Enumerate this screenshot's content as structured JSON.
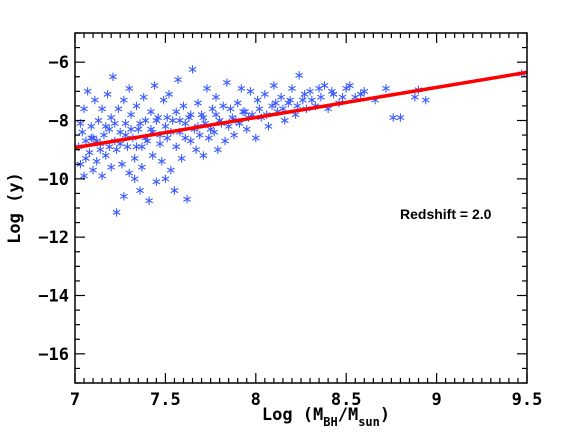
{
  "chart_data": {
    "type": "scatter",
    "title": "",
    "xlabel_parts": [
      "Log (M",
      "BH",
      "/M",
      "sun",
      ")"
    ],
    "ylabel": "Log (y)",
    "xlim": [
      7,
      9.5
    ],
    "ylim": [
      -17,
      -5
    ],
    "x_ticks": [
      7,
      7.5,
      8,
      8.5,
      9,
      9.5
    ],
    "x_tick_labels": [
      "7",
      "7.5",
      "8",
      "8.5",
      "9",
      "9.5"
    ],
    "y_ticks": [
      -16,
      -14,
      -12,
      -10,
      -8,
      -6
    ],
    "y_tick_labels": [
      "−16",
      "−14",
      "−12",
      "−10",
      "−8",
      "−6"
    ],
    "grid": false,
    "annotation": "Redshift = 2.0",
    "marker_color": "#3b5bff",
    "line_color": "#ff0000",
    "fit_line": {
      "x": [
        7.0,
        9.5
      ],
      "y": [
        -8.93,
        -6.35
      ]
    },
    "series": [
      {
        "marker": "asterisk",
        "points": [
          [
            7.02,
            -8.9
          ],
          [
            7.03,
            -9.5
          ],
          [
            7.04,
            -8.4
          ],
          [
            7.05,
            -7.6
          ],
          [
            7.05,
            -9.9
          ],
          [
            7.06,
            -8.7
          ],
          [
            7.07,
            -7.0
          ],
          [
            7.08,
            -9.1
          ],
          [
            7.09,
            -8.2
          ],
          [
            7.1,
            -9.7
          ],
          [
            7.1,
            -8.6
          ],
          [
            7.11,
            -7.3
          ],
          [
            7.12,
            -9.4
          ],
          [
            7.13,
            -8.0
          ],
          [
            7.14,
            -8.8
          ],
          [
            7.15,
            -9.9
          ],
          [
            7.15,
            -7.6
          ],
          [
            7.16,
            -8.5
          ],
          [
            7.17,
            -9.2
          ],
          [
            7.18,
            -7.1
          ],
          [
            7.19,
            -8.3
          ],
          [
            7.2,
            -9.6
          ],
          [
            7.2,
            -7.9
          ],
          [
            7.21,
            -6.5
          ],
          [
            7.22,
            -8.7
          ],
          [
            7.23,
            -9.0
          ],
          [
            7.23,
            -11.15
          ],
          [
            7.24,
            -7.6
          ],
          [
            7.25,
            -8.4
          ],
          [
            7.26,
            -9.5
          ],
          [
            7.27,
            -10.6
          ],
          [
            7.27,
            -7.3
          ],
          [
            7.28,
            -8.1
          ],
          [
            7.29,
            -8.9
          ],
          [
            7.3,
            -6.9
          ],
          [
            7.3,
            -9.8
          ],
          [
            7.31,
            -7.8
          ],
          [
            7.32,
            -8.6
          ],
          [
            7.33,
            -10.0
          ],
          [
            7.33,
            -9.3
          ],
          [
            7.34,
            -7.5
          ],
          [
            7.35,
            -8.3
          ],
          [
            7.36,
            -10.4
          ],
          [
            7.37,
            -9.6
          ],
          [
            7.37,
            -8.9
          ],
          [
            7.38,
            -7.2
          ],
          [
            7.39,
            -8.0
          ],
          [
            7.4,
            -8.7
          ],
          [
            7.41,
            -10.75
          ],
          [
            7.42,
            -7.7
          ],
          [
            7.43,
            -9.2
          ],
          [
            7.43,
            -8.4
          ],
          [
            7.44,
            -6.8
          ],
          [
            7.45,
            -10.1
          ],
          [
            7.46,
            -7.9
          ],
          [
            7.47,
            -8.8
          ],
          [
            7.48,
            -9.4
          ],
          [
            7.49,
            -7.3
          ],
          [
            7.5,
            -8.2
          ],
          [
            7.5,
            -10.0
          ],
          [
            7.51,
            -8.6
          ],
          [
            7.52,
            -7.1
          ],
          [
            7.53,
            -9.7
          ],
          [
            7.54,
            -8.0
          ],
          [
            7.55,
            -10.4
          ],
          [
            7.56,
            -7.7
          ],
          [
            7.56,
            -8.9
          ],
          [
            7.57,
            -6.6
          ],
          [
            7.58,
            -8.4
          ],
          [
            7.59,
            -9.3
          ],
          [
            7.6,
            -7.5
          ],
          [
            7.61,
            -8.1
          ],
          [
            7.62,
            -10.7
          ],
          [
            7.63,
            -7.9
          ],
          [
            7.64,
            -8.7
          ],
          [
            7.65,
            -6.25
          ],
          [
            7.66,
            -8.3
          ],
          [
            7.67,
            -9.0
          ],
          [
            7.68,
            -7.4
          ],
          [
            7.69,
            -8.5
          ],
          [
            7.7,
            -7.8
          ],
          [
            7.71,
            -9.2
          ],
          [
            7.72,
            -8.1
          ],
          [
            7.73,
            -6.9
          ],
          [
            7.74,
            -8.6
          ],
          [
            7.76,
            -7.6
          ],
          [
            7.77,
            -8.4
          ],
          [
            7.78,
            -7.2
          ],
          [
            7.79,
            -9.0
          ],
          [
            7.8,
            -8.0
          ],
          [
            7.82,
            -7.5
          ],
          [
            7.83,
            -8.7
          ],
          [
            7.84,
            -6.7
          ],
          [
            7.85,
            -8.2
          ],
          [
            7.87,
            -7.9
          ],
          [
            7.88,
            -8.5
          ],
          [
            7.9,
            -7.4
          ],
          [
            7.91,
            -8.1
          ],
          [
            7.92,
            -6.9
          ],
          [
            7.94,
            -7.7
          ],
          [
            7.95,
            -8.3
          ],
          [
            7.97,
            -7.0
          ],
          [
            7.98,
            -7.8
          ],
          [
            8.0,
            -8.6
          ],
          [
            8.01,
            -7.3
          ],
          [
            8.03,
            -7.9
          ],
          [
            8.05,
            -7.1
          ],
          [
            8.07,
            -8.2
          ],
          [
            8.09,
            -7.5
          ],
          [
            8.1,
            -6.8
          ],
          [
            8.12,
            -7.7
          ],
          [
            8.14,
            -7.2
          ],
          [
            8.16,
            -8.0
          ],
          [
            8.18,
            -7.4
          ],
          [
            8.2,
            -6.9
          ],
          [
            8.22,
            -7.8
          ],
          [
            8.24,
            -6.45
          ],
          [
            8.26,
            -7.3
          ],
          [
            8.28,
            -7.6
          ],
          [
            8.3,
            -7.0
          ],
          [
            8.33,
            -7.5
          ],
          [
            8.36,
            -7.2
          ],
          [
            8.38,
            -6.8
          ],
          [
            8.4,
            -7.6
          ],
          [
            8.43,
            -7.1
          ],
          [
            8.46,
            -7.4
          ],
          [
            8.5,
            -6.9
          ],
          [
            8.55,
            -7.2
          ],
          [
            8.6,
            -7.0
          ],
          [
            8.66,
            -7.3
          ],
          [
            8.72,
            -6.9
          ],
          [
            8.76,
            -7.9
          ],
          [
            8.8,
            -7.9
          ],
          [
            8.88,
            -7.2
          ],
          [
            8.9,
            -6.95
          ],
          [
            8.94,
            -7.3
          ],
          [
            9.47,
            -6.4
          ],
          [
            7.03,
            -8.1
          ],
          [
            7.06,
            -9.3
          ],
          [
            7.09,
            -8.6
          ],
          [
            7.12,
            -8.7
          ],
          [
            7.14,
            -9.0
          ],
          [
            7.17,
            -8.2
          ],
          [
            7.19,
            -8.9
          ],
          [
            7.22,
            -8.1
          ],
          [
            7.25,
            -8.8
          ],
          [
            7.28,
            -8.5
          ],
          [
            7.31,
            -8.3
          ],
          [
            7.34,
            -8.9
          ],
          [
            7.36,
            -8.1
          ],
          [
            7.39,
            -8.6
          ],
          [
            7.42,
            -8.3
          ],
          [
            7.45,
            -8.0
          ],
          [
            7.47,
            -8.5
          ],
          [
            7.51,
            -7.9
          ],
          [
            7.53,
            -8.4
          ],
          [
            7.58,
            -8.0
          ],
          [
            7.61,
            -8.6
          ],
          [
            7.64,
            -7.8
          ],
          [
            7.68,
            -8.2
          ],
          [
            7.71,
            -7.9
          ],
          [
            7.75,
            -8.3
          ],
          [
            7.78,
            -7.8
          ],
          [
            7.81,
            -8.1
          ],
          [
            7.86,
            -7.6
          ],
          [
            7.89,
            -8.0
          ],
          [
            7.93,
            -7.7
          ],
          [
            7.96,
            -7.9
          ],
          [
            8.02,
            -7.6
          ],
          [
            8.06,
            -7.8
          ],
          [
            8.11,
            -7.4
          ],
          [
            8.15,
            -7.6
          ],
          [
            8.19,
            -7.3
          ],
          [
            8.23,
            -7.5
          ],
          [
            8.27,
            -7.1
          ],
          [
            8.31,
            -7.3
          ],
          [
            8.35,
            -6.9
          ],
          [
            8.42,
            -7.0
          ],
          [
            8.48,
            -7.2
          ],
          [
            8.52,
            -6.8
          ],
          [
            8.58,
            -7.1
          ]
        ]
      }
    ]
  }
}
